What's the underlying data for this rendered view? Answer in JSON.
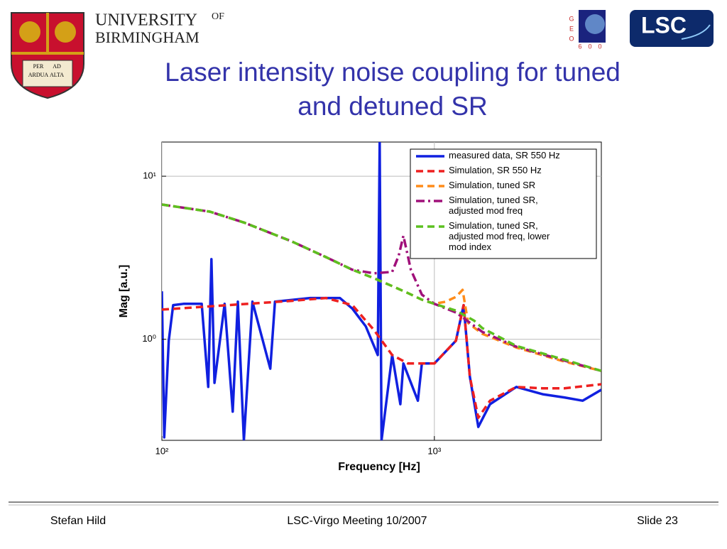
{
  "slide": {
    "title_lines": [
      "Laser intensity noise coupling for tuned",
      "and detuned SR"
    ],
    "logo_university": "UNIVERSITY",
    "logo_of": "OF",
    "logo_birmingham": "BIRMINGHAM",
    "crest_motto": [
      "PER",
      "AD",
      "ARDUA",
      "ALTA"
    ],
    "geo_letters": [
      "G",
      "E",
      "O"
    ],
    "geo_number": [
      "6",
      "0",
      "0"
    ],
    "lsc_logo": "LSC",
    "footer_left": "Stefan Hild",
    "footer_center": "LSC-Virgo Meeting 10/2007",
    "footer_right": "Slide 23"
  },
  "chart_data": {
    "type": "line",
    "x_label": "Frequency [Hz]",
    "y_label": "Mag [a.u.]",
    "xlog": true,
    "ylog": true,
    "grid": true,
    "legend": "upper right",
    "xlim": [
      100,
      4100
    ],
    "ylim": [
      0.24,
      16.2
    ],
    "xticks": [
      {
        "value": 100,
        "label": "10²"
      },
      {
        "value": 1000,
        "label": "10³"
      }
    ],
    "yticks": [
      {
        "value": 1,
        "label": "10⁰"
      },
      {
        "value": 10,
        "label": "10¹"
      }
    ],
    "series": [
      {
        "name": "measured data, SR 550 Hz",
        "color": "#1020e0",
        "style": "solid",
        "x": [
          100,
          102,
          106,
          110,
          120,
          140,
          148,
          152,
          156,
          170,
          182,
          190,
          200,
          215,
          250,
          260,
          350,
          450,
          500,
          560,
          620,
          630,
          640,
          700,
          750,
          770,
          870,
          900,
          1000,
          1200,
          1280,
          1350,
          1450,
          1600,
          2000,
          2500,
          3000,
          3500,
          4100
        ],
        "values": [
          1.97,
          0.25,
          0.98,
          1.62,
          1.65,
          1.65,
          0.51,
          3.1,
          0.54,
          1.65,
          0.36,
          1.7,
          0.24,
          1.7,
          0.66,
          1.7,
          1.79,
          1.79,
          1.54,
          1.2,
          0.8,
          16.2,
          0.24,
          0.8,
          0.4,
          0.71,
          0.42,
          0.71,
          0.71,
          0.98,
          1.62,
          0.59,
          0.29,
          0.4,
          0.51,
          0.46,
          0.44,
          0.42,
          0.49
        ]
      },
      {
        "name": "Simulation, SR 550 Hz",
        "color": "#ee2020",
        "style": "dash",
        "x": [
          100,
          300,
          400,
          500,
          600,
          700,
          800,
          1000,
          1200,
          1280,
          1350,
          1450,
          1600,
          2000,
          2500,
          3000,
          4100
        ],
        "values": [
          1.52,
          1.72,
          1.79,
          1.62,
          1.14,
          0.8,
          0.71,
          0.71,
          0.98,
          1.62,
          0.59,
          0.33,
          0.42,
          0.51,
          0.5,
          0.5,
          0.53
        ]
      },
      {
        "name": "Simulation, tuned SR",
        "color": "#ff8c1a",
        "style": "dash",
        "x": [
          100,
          150,
          200,
          300,
          400,
          500,
          600,
          700,
          800,
          900,
          1000,
          1100,
          1200,
          1270,
          1330,
          1500,
          2000,
          3000,
          4100
        ],
        "values": [
          6.7,
          6.06,
          5.2,
          3.98,
          3.19,
          2.67,
          2.37,
          2.12,
          1.92,
          1.75,
          1.65,
          1.7,
          1.82,
          2.01,
          1.26,
          1.08,
          0.89,
          0.73,
          0.64
        ]
      },
      {
        "name": "Simulation, tuned SR, adjusted mod freq",
        "color": "#a0107a",
        "style": "dashdot",
        "x": [
          100,
          150,
          200,
          300,
          400,
          500,
          600,
          700,
          740,
          770,
          820,
          900,
          1000,
          1200,
          1500,
          2000,
          3000,
          4100
        ],
        "values": [
          6.7,
          6.06,
          5.2,
          3.98,
          3.19,
          2.67,
          2.54,
          2.59,
          3.26,
          4.31,
          2.67,
          1.88,
          1.65,
          1.46,
          1.11,
          0.9,
          0.74,
          0.64
        ]
      },
      {
        "name": "Simulation, tuned SR, adjusted mod freq, lower mod index",
        "color": "#5cc020",
        "style": "dash",
        "x": [
          100,
          150,
          200,
          300,
          400,
          500,
          600,
          700,
          800,
          900,
          1000,
          1200,
          1400,
          1500,
          2000,
          3000,
          4100
        ],
        "values": [
          6.7,
          6.06,
          5.2,
          3.98,
          3.19,
          2.67,
          2.37,
          2.12,
          1.92,
          1.75,
          1.65,
          1.5,
          1.3,
          1.17,
          0.91,
          0.75,
          0.64
        ]
      }
    ]
  }
}
